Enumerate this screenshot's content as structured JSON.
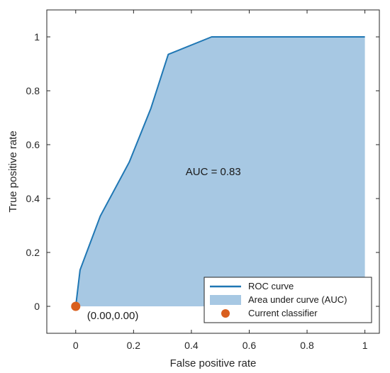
{
  "colors": {
    "roc_line": "#1f77b4",
    "auc_fill": "#a7c8e3",
    "classifier_marker": "#d95f1e",
    "axes": "#262626"
  },
  "chart_data": {
    "type": "area",
    "xlabel": "False positive rate",
    "ylabel": "True positive rate",
    "xlim": [
      -0.1,
      1.05
    ],
    "ylim": [
      -0.1,
      1.1
    ],
    "x_ticks": [
      0,
      0.2,
      0.4,
      0.6,
      0.8,
      1
    ],
    "y_ticks": [
      0,
      0.2,
      0.4,
      0.6,
      0.8,
      1
    ],
    "x_tick_labels": [
      "0",
      "0.2",
      "0.4",
      "0.6",
      "0.8",
      "1"
    ],
    "y_tick_labels": [
      "0",
      "0.2",
      "0.4",
      "0.6",
      "0.8",
      "1"
    ],
    "grid": false,
    "series": [
      {
        "name": "ROC curve",
        "x": [
          0,
          0.015,
          0.085,
          0.185,
          0.26,
          0.32,
          0.47,
          1
        ],
        "y": [
          0,
          0.135,
          0.335,
          0.535,
          0.735,
          0.935,
          1,
          1
        ]
      }
    ],
    "points": [
      {
        "name": "Current classifier",
        "x": 0,
        "y": 0,
        "label": "(0.00,0.00)"
      }
    ],
    "annotations": [
      {
        "text": "AUC = 0.83",
        "x": 0.38,
        "y": 0.5
      }
    ],
    "legend": {
      "position": "bottom-right",
      "entries": [
        "ROC curve",
        "Area under curve (AUC)",
        "Current classifier"
      ]
    }
  }
}
